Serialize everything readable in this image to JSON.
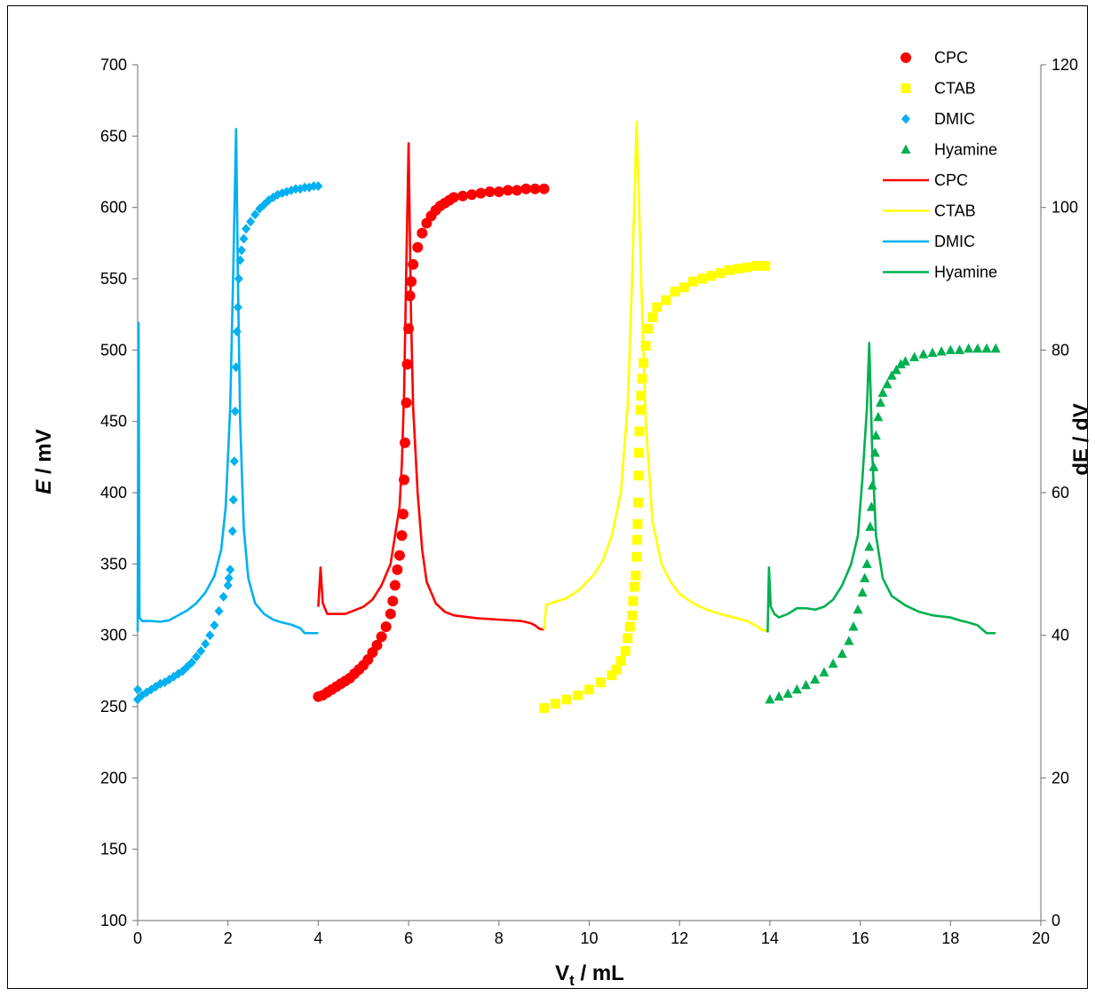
{
  "chart_data": {
    "type": "scatter",
    "x_axis": {
      "label_main": "V",
      "label_sub": "t",
      "label_rest": " / mL",
      "min": 0,
      "max": 20,
      "step": 2
    },
    "y_axis_left": {
      "label_main": "E",
      "label_rest": " / mV",
      "min": 100,
      "max": 700,
      "step": 50
    },
    "y_axis_right": {
      "label": "dE / dV",
      "min": 0,
      "max": 120,
      "step": 20
    },
    "legend": {
      "position": "top-right"
    },
    "series": [
      {
        "name": "CPC",
        "kind": "points",
        "marker": "circle",
        "color": "#ff0000",
        "axis": "left",
        "points": [
          [
            4.0,
            257
          ],
          [
            4.1,
            258
          ],
          [
            4.2,
            260
          ],
          [
            4.3,
            262
          ],
          [
            4.4,
            264
          ],
          [
            4.5,
            266
          ],
          [
            4.6,
            268
          ],
          [
            4.7,
            270
          ],
          [
            4.8,
            273
          ],
          [
            4.9,
            276
          ],
          [
            5.0,
            279
          ],
          [
            5.1,
            283
          ],
          [
            5.2,
            288
          ],
          [
            5.3,
            293
          ],
          [
            5.4,
            299
          ],
          [
            5.5,
            306
          ],
          [
            5.6,
            315
          ],
          [
            5.65,
            324
          ],
          [
            5.7,
            335
          ],
          [
            5.75,
            346
          ],
          [
            5.8,
            356
          ],
          [
            5.85,
            370
          ],
          [
            5.88,
            385
          ],
          [
            5.9,
            409
          ],
          [
            5.92,
            435
          ],
          [
            5.95,
            463
          ],
          [
            5.97,
            490
          ],
          [
            6.0,
            515
          ],
          [
            6.03,
            538
          ],
          [
            6.06,
            548
          ],
          [
            6.1,
            560
          ],
          [
            6.2,
            572
          ],
          [
            6.3,
            582
          ],
          [
            6.4,
            589
          ],
          [
            6.5,
            594
          ],
          [
            6.6,
            598
          ],
          [
            6.7,
            601
          ],
          [
            6.8,
            603
          ],
          [
            6.9,
            605
          ],
          [
            7.0,
            607
          ],
          [
            7.2,
            608
          ],
          [
            7.4,
            609
          ],
          [
            7.6,
            610
          ],
          [
            7.8,
            611
          ],
          [
            8.0,
            611
          ],
          [
            8.2,
            612
          ],
          [
            8.4,
            612
          ],
          [
            8.6,
            613
          ],
          [
            8.8,
            613
          ],
          [
            9.0,
            613
          ]
        ]
      },
      {
        "name": "CTAB",
        "kind": "points",
        "marker": "square",
        "color": "#ffff00",
        "axis": "left",
        "points": [
          [
            9.0,
            249
          ],
          [
            9.25,
            252
          ],
          [
            9.5,
            255
          ],
          [
            9.75,
            258
          ],
          [
            10.0,
            262
          ],
          [
            10.25,
            267
          ],
          [
            10.5,
            272
          ],
          [
            10.6,
            276
          ],
          [
            10.7,
            282
          ],
          [
            10.8,
            289
          ],
          [
            10.85,
            298
          ],
          [
            10.9,
            306
          ],
          [
            10.95,
            314
          ],
          [
            10.97,
            324
          ],
          [
            11.0,
            334
          ],
          [
            11.03,
            342
          ],
          [
            11.05,
            355
          ],
          [
            11.06,
            367
          ],
          [
            11.07,
            378
          ],
          [
            11.08,
            393
          ],
          [
            11.09,
            412
          ],
          [
            11.1,
            428
          ],
          [
            11.11,
            443
          ],
          [
            11.13,
            458
          ],
          [
            11.15,
            468
          ],
          [
            11.17,
            480
          ],
          [
            11.2,
            491
          ],
          [
            11.25,
            503
          ],
          [
            11.3,
            515
          ],
          [
            11.4,
            523
          ],
          [
            11.5,
            530
          ],
          [
            11.7,
            535
          ],
          [
            11.9,
            541
          ],
          [
            12.1,
            544
          ],
          [
            12.3,
            548
          ],
          [
            12.5,
            550
          ],
          [
            12.7,
            552
          ],
          [
            12.9,
            554
          ],
          [
            13.1,
            556
          ],
          [
            13.3,
            557
          ],
          [
            13.5,
            558
          ],
          [
            13.7,
            559
          ],
          [
            13.9,
            559
          ]
        ]
      },
      {
        "name": "DMIC",
        "kind": "points",
        "marker": "diamond",
        "color": "#00b0f0",
        "axis": "left",
        "points": [
          [
            0.0,
            255
          ],
          [
            0.0,
            262
          ],
          [
            0.1,
            258
          ],
          [
            0.2,
            260
          ],
          [
            0.3,
            262
          ],
          [
            0.4,
            264
          ],
          [
            0.5,
            266
          ],
          [
            0.6,
            267
          ],
          [
            0.7,
            269
          ],
          [
            0.8,
            271
          ],
          [
            0.9,
            273
          ],
          [
            1.0,
            275
          ],
          [
            1.1,
            278
          ],
          [
            1.2,
            281
          ],
          [
            1.3,
            285
          ],
          [
            1.4,
            289
          ],
          [
            1.5,
            294
          ],
          [
            1.6,
            300
          ],
          [
            1.7,
            307
          ],
          [
            1.8,
            317
          ],
          [
            1.9,
            327
          ],
          [
            2.0,
            335
          ],
          [
            2.02,
            340
          ],
          [
            2.05,
            346
          ],
          [
            2.1,
            373
          ],
          [
            2.12,
            395
          ],
          [
            2.14,
            422
          ],
          [
            2.16,
            457
          ],
          [
            2.18,
            488
          ],
          [
            2.2,
            513
          ],
          [
            2.22,
            530
          ],
          [
            2.24,
            550
          ],
          [
            2.27,
            563
          ],
          [
            2.3,
            570
          ],
          [
            2.35,
            578
          ],
          [
            2.4,
            585
          ],
          [
            2.5,
            590
          ],
          [
            2.6,
            595
          ],
          [
            2.7,
            599
          ],
          [
            2.8,
            602
          ],
          [
            2.9,
            605
          ],
          [
            3.0,
            607
          ],
          [
            3.1,
            609
          ],
          [
            3.2,
            610
          ],
          [
            3.3,
            611
          ],
          [
            3.4,
            612
          ],
          [
            3.5,
            613
          ],
          [
            3.6,
            613
          ],
          [
            3.7,
            614
          ],
          [
            3.8,
            614
          ],
          [
            3.9,
            615
          ],
          [
            4.0,
            615
          ]
        ]
      },
      {
        "name": "Hyamine",
        "kind": "points",
        "marker": "triangle",
        "color": "#00b050",
        "axis": "left",
        "points": [
          [
            14.0,
            255
          ],
          [
            14.2,
            257
          ],
          [
            14.4,
            259
          ],
          [
            14.6,
            262
          ],
          [
            14.8,
            265
          ],
          [
            15.0,
            269
          ],
          [
            15.2,
            274
          ],
          [
            15.4,
            280
          ],
          [
            15.6,
            287
          ],
          [
            15.75,
            296
          ],
          [
            15.85,
            306
          ],
          [
            15.95,
            318
          ],
          [
            16.05,
            330
          ],
          [
            16.1,
            340
          ],
          [
            16.15,
            350
          ],
          [
            16.2,
            362
          ],
          [
            16.22,
            376
          ],
          [
            16.25,
            390
          ],
          [
            16.27,
            405
          ],
          [
            16.3,
            418
          ],
          [
            16.33,
            428
          ],
          [
            16.35,
            440
          ],
          [
            16.4,
            453
          ],
          [
            16.45,
            463
          ],
          [
            16.5,
            470
          ],
          [
            16.6,
            476
          ],
          [
            16.7,
            482
          ],
          [
            16.8,
            486
          ],
          [
            16.9,
            490
          ],
          [
            17.0,
            492
          ],
          [
            17.2,
            495
          ],
          [
            17.4,
            497
          ],
          [
            17.6,
            498
          ],
          [
            17.8,
            499
          ],
          [
            18.0,
            500
          ],
          [
            18.2,
            500
          ],
          [
            18.4,
            501
          ],
          [
            18.6,
            501
          ],
          [
            18.8,
            501
          ],
          [
            19.0,
            501
          ]
        ]
      },
      {
        "name": "CPC",
        "kind": "line",
        "color": "#ff0000",
        "axis": "right",
        "points": [
          [
            4.0,
            44
          ],
          [
            4.05,
            49.5
          ],
          [
            4.1,
            44.5
          ],
          [
            4.2,
            43
          ],
          [
            4.4,
            43
          ],
          [
            4.6,
            43
          ],
          [
            4.8,
            43.5
          ],
          [
            5.0,
            44
          ],
          [
            5.2,
            45
          ],
          [
            5.4,
            47
          ],
          [
            5.6,
            50
          ],
          [
            5.7,
            54
          ],
          [
            5.8,
            58
          ],
          [
            5.85,
            64
          ],
          [
            5.9,
            74
          ],
          [
            5.95,
            92
          ],
          [
            6.0,
            109
          ],
          [
            6.05,
            86
          ],
          [
            6.1,
            72
          ],
          [
            6.2,
            60
          ],
          [
            6.3,
            52
          ],
          [
            6.4,
            47.5
          ],
          [
            6.6,
            44.5
          ],
          [
            6.8,
            43.3
          ],
          [
            7.0,
            42.8
          ],
          [
            7.5,
            42.4
          ],
          [
            8.0,
            42.2
          ],
          [
            8.5,
            42.0
          ],
          [
            8.7,
            41.7
          ],
          [
            8.8,
            41.4
          ],
          [
            8.9,
            40.9
          ],
          [
            9.0,
            40.8
          ]
        ]
      },
      {
        "name": "CTAB",
        "kind": "line",
        "color": "#ffff00",
        "axis": "right",
        "points": [
          [
            9.0,
            40.8
          ],
          [
            9.05,
            44.3
          ],
          [
            9.2,
            44.6
          ],
          [
            9.5,
            45.2
          ],
          [
            9.8,
            46.5
          ],
          [
            10.1,
            48.5
          ],
          [
            10.3,
            50.5
          ],
          [
            10.5,
            54
          ],
          [
            10.7,
            60
          ],
          [
            10.85,
            72
          ],
          [
            10.95,
            90
          ],
          [
            11.05,
            112
          ],
          [
            11.15,
            90
          ],
          [
            11.25,
            70
          ],
          [
            11.4,
            56
          ],
          [
            11.6,
            50
          ],
          [
            11.8,
            47.5
          ],
          [
            12.0,
            45.8
          ],
          [
            12.3,
            44.5
          ],
          [
            12.6,
            43.6
          ],
          [
            12.9,
            43
          ],
          [
            13.2,
            42.5
          ],
          [
            13.5,
            42
          ],
          [
            13.7,
            41.3
          ],
          [
            13.85,
            40.7
          ],
          [
            13.95,
            40.6
          ]
        ]
      },
      {
        "name": "DMIC",
        "kind": "line",
        "color": "#00b0f0",
        "axis": "right",
        "points": [
          [
            0.0,
            40.5
          ],
          [
            0.02,
            83.8
          ],
          [
            0.04,
            42.5
          ],
          [
            0.1,
            42
          ],
          [
            0.3,
            42
          ],
          [
            0.5,
            41.9
          ],
          [
            0.7,
            42.1
          ],
          [
            0.9,
            42.8
          ],
          [
            1.1,
            43.5
          ],
          [
            1.3,
            44.5
          ],
          [
            1.5,
            46
          ],
          [
            1.7,
            48.3
          ],
          [
            1.85,
            52
          ],
          [
            1.95,
            58
          ],
          [
            2.05,
            72
          ],
          [
            2.12,
            92
          ],
          [
            2.18,
            111
          ],
          [
            2.22,
            90
          ],
          [
            2.27,
            70
          ],
          [
            2.35,
            55
          ],
          [
            2.45,
            48
          ],
          [
            2.6,
            44.5
          ],
          [
            2.8,
            43
          ],
          [
            3.0,
            42.2
          ],
          [
            3.2,
            41.8
          ],
          [
            3.4,
            41.5
          ],
          [
            3.6,
            41
          ],
          [
            3.7,
            40.3
          ],
          [
            3.8,
            40.3
          ],
          [
            3.9,
            40.3
          ],
          [
            4.0,
            40.3
          ]
        ]
      },
      {
        "name": "Hyamine",
        "kind": "line",
        "color": "#00b050",
        "axis": "right",
        "points": [
          [
            13.95,
            40.4
          ],
          [
            13.98,
            49.5
          ],
          [
            14.02,
            44
          ],
          [
            14.1,
            43
          ],
          [
            14.2,
            42.5
          ],
          [
            14.4,
            43
          ],
          [
            14.6,
            43.8
          ],
          [
            14.8,
            43.8
          ],
          [
            15.0,
            43.6
          ],
          [
            15.2,
            44
          ],
          [
            15.4,
            45
          ],
          [
            15.6,
            47
          ],
          [
            15.8,
            50
          ],
          [
            15.95,
            54
          ],
          [
            16.05,
            62
          ],
          [
            16.15,
            72
          ],
          [
            16.2,
            81
          ],
          [
            16.27,
            65
          ],
          [
            16.35,
            54
          ],
          [
            16.5,
            48
          ],
          [
            16.7,
            45.5
          ],
          [
            17.0,
            44.2
          ],
          [
            17.3,
            43.3
          ],
          [
            17.6,
            42.8
          ],
          [
            18.0,
            42.5
          ],
          [
            18.2,
            42.1
          ],
          [
            18.4,
            41.8
          ],
          [
            18.6,
            41.4
          ],
          [
            18.8,
            40.3
          ],
          [
            19.0,
            40.3
          ]
        ]
      }
    ]
  }
}
